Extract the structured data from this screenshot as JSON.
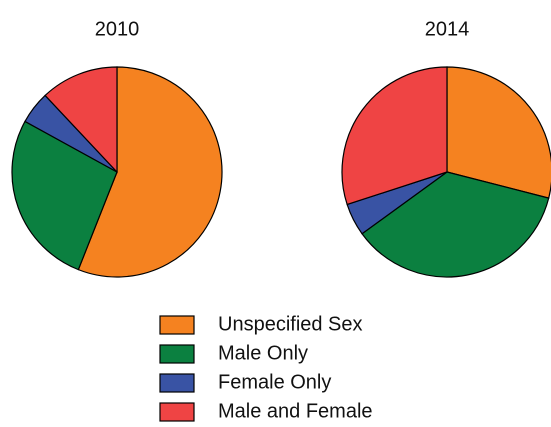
{
  "legend": {
    "labels": [
      "Unspecified Sex",
      "Male Only",
      "Female Only",
      "Male and Female"
    ],
    "colors": [
      "#f58220",
      "#0b8040",
      "#3953a4",
      "#ef4444"
    ]
  },
  "chart_data": [
    {
      "type": "pie",
      "title": "2010",
      "values": [
        56,
        27,
        5,
        12
      ]
    },
    {
      "type": "pie",
      "title": "2014",
      "values": [
        29,
        36,
        5,
        30
      ]
    }
  ]
}
